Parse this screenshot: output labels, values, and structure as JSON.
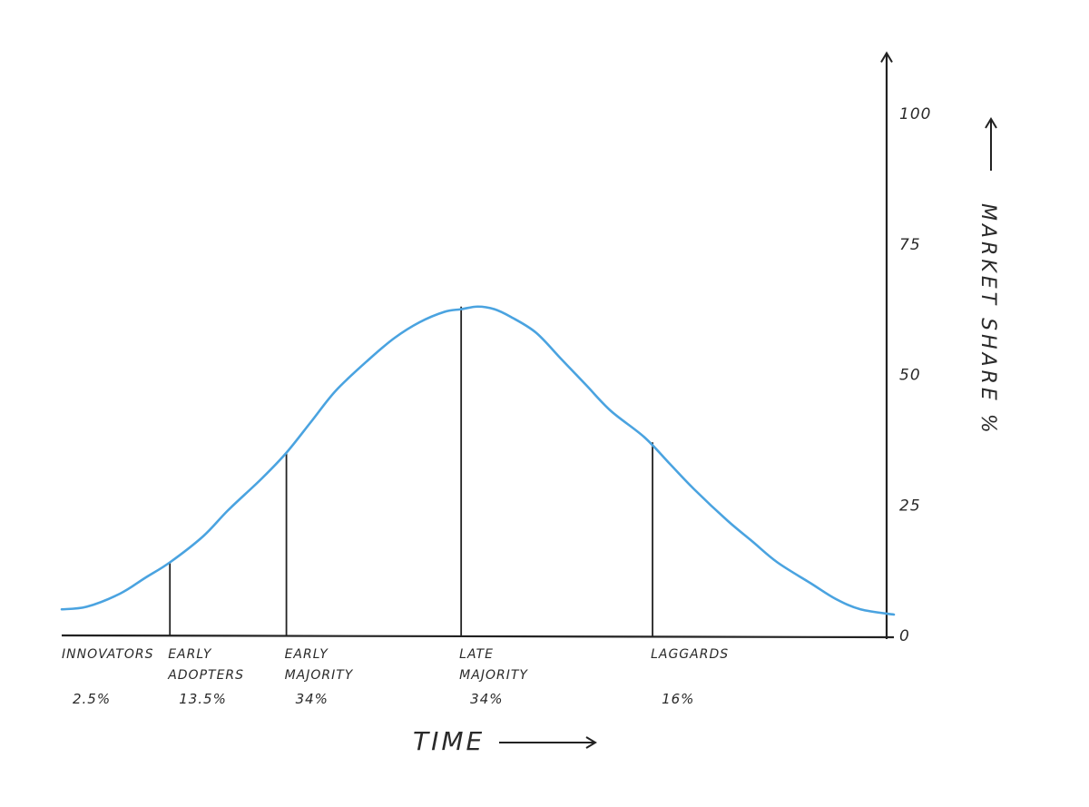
{
  "chart_data": {
    "type": "line",
    "title": "",
    "xlabel": "TIME",
    "ylabel": "MARKET SHARE %",
    "ylim": [
      0,
      110
    ],
    "x_range": [
      0,
      100
    ],
    "yticks": [
      "0",
      "25",
      "50",
      "75",
      "100"
    ],
    "ytick_values": [
      0,
      25,
      50,
      75,
      100
    ],
    "series": [
      {
        "color": "#4aa3e0",
        "x": [
          0,
          3,
          7,
          10,
          13,
          17,
          20,
          24,
          27,
          30,
          33,
          37,
          40,
          43,
          46,
          48,
          50,
          52,
          54,
          57,
          60,
          63,
          66,
          70,
          73,
          76,
          80,
          83,
          86,
          90,
          93,
          96,
          100
        ],
        "y": [
          5,
          5.5,
          8,
          11,
          14,
          19,
          24,
          30,
          35,
          41,
          47,
          53,
          57,
          60,
          62,
          62.5,
          63,
          62.5,
          61,
          58,
          53,
          48,
          43,
          38,
          33,
          28,
          22,
          18,
          14,
          10,
          7,
          5,
          4
        ]
      }
    ],
    "dividers": [
      {
        "x": 13,
        "y": 14
      },
      {
        "x": 27,
        "y": 35
      },
      {
        "x": 48,
        "y": 63
      },
      {
        "x": 71,
        "y": 37
      }
    ],
    "segments": [
      {
        "name_lines": [
          "INNOVATORS"
        ],
        "pct": "2.5%",
        "x": 0
      },
      {
        "name_lines": [
          "EARLY",
          "ADOPTERS"
        ],
        "pct": "13.5%",
        "x": 13
      },
      {
        "name_lines": [
          "EARLY",
          "MAJORITY"
        ],
        "pct": "34%",
        "x": 27
      },
      {
        "name_lines": [
          "LATE",
          "MAJORITY"
        ],
        "pct": "34%",
        "x": 48
      },
      {
        "name_lines": [
          "LAGGARDS"
        ],
        "pct": "16%",
        "x": 71
      }
    ]
  }
}
